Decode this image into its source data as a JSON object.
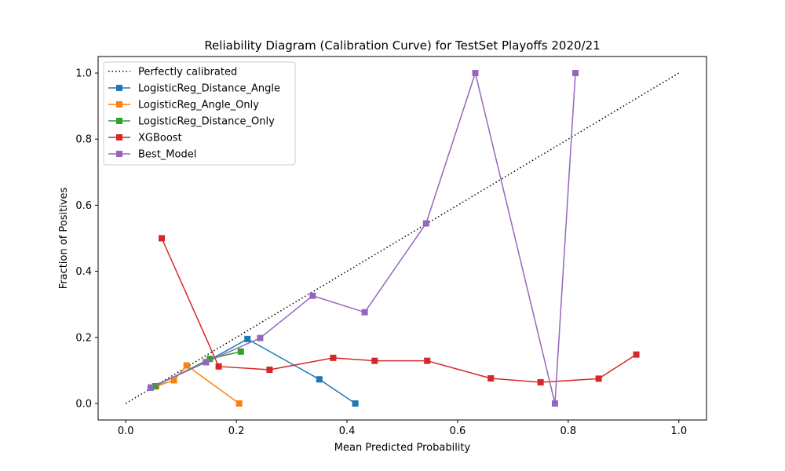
{
  "chart_data": {
    "type": "line",
    "title": "Reliability Diagram (Calibration Curve) for TestSet Playoffs 2020/21",
    "xlabel": "Mean Predicted Probability",
    "ylabel": "Fraction of Positives",
    "xlim": [
      -0.05,
      1.05
    ],
    "ylim": [
      -0.05,
      1.05
    ],
    "xticks": [
      "0.0",
      "0.2",
      "0.4",
      "0.6",
      "0.8",
      "1.0"
    ],
    "yticks": [
      "0.0",
      "0.2",
      "0.4",
      "0.6",
      "0.8",
      "1.0"
    ],
    "grid": false,
    "legend_position": "upper-left",
    "reference": {
      "name": "Perfectly calibrated",
      "x": [
        0,
        1
      ],
      "y": [
        0,
        1
      ],
      "color": "#000000",
      "style": "dotted"
    },
    "series": [
      {
        "name": "LogisticReg_Distance_Angle",
        "color": "#1f77b4",
        "x": [
          0.045,
          0.145,
          0.22,
          0.35,
          0.415
        ],
        "y": [
          0.048,
          0.125,
          0.195,
          0.073,
          0.0
        ]
      },
      {
        "name": "LogisticReg_Angle_Only",
        "color": "#ff7f0e",
        "x": [
          0.055,
          0.087,
          0.11,
          0.205
        ],
        "y": [
          0.052,
          0.07,
          0.115,
          0.0
        ]
      },
      {
        "name": "LogisticReg_Distance_Only",
        "color": "#2ca02c",
        "x": [
          0.053,
          0.152,
          0.208
        ],
        "y": [
          0.052,
          0.135,
          0.157
        ]
      },
      {
        "name": "XGBoost",
        "color": "#d62728",
        "x": [
          0.065,
          0.168,
          0.26,
          0.375,
          0.45,
          0.545,
          0.66,
          0.75,
          0.855,
          0.923
        ],
        "y": [
          0.5,
          0.112,
          0.102,
          0.138,
          0.129,
          0.129,
          0.076,
          0.064,
          0.075,
          0.148
        ]
      },
      {
        "name": "Best_Model",
        "color": "#9467bd",
        "x": [
          0.045,
          0.145,
          0.243,
          0.338,
          0.432,
          0.543,
          0.632,
          0.776,
          0.813
        ],
        "y": [
          0.048,
          0.125,
          0.198,
          0.326,
          0.276,
          0.545,
          1.0,
          0.0,
          1.0
        ]
      }
    ]
  }
}
